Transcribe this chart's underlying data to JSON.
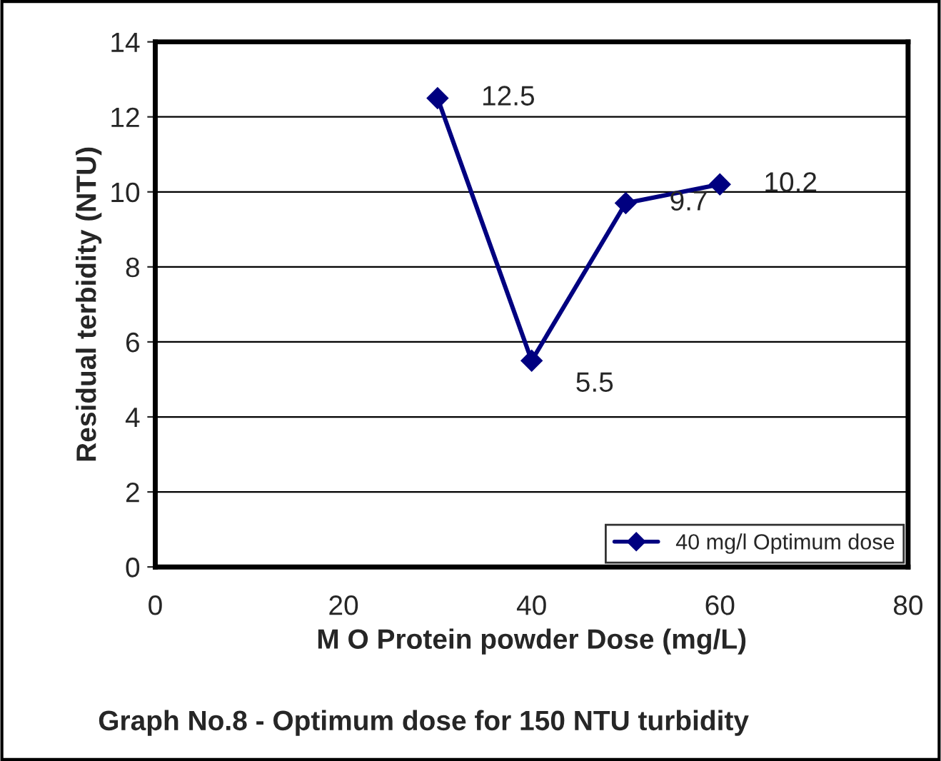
{
  "chart_data": {
    "type": "line",
    "xlabel": "M O Protein powder Dose (mg/L)",
    "ylabel": "Residual terbidity (NTU)",
    "x": [
      30,
      40,
      50,
      60
    ],
    "series": [
      {
        "name": "40 mg/l Optimum dose",
        "color": "#000080",
        "values": [
          12.5,
          5.5,
          9.7,
          10.2
        ]
      }
    ],
    "xlim": [
      0,
      80
    ],
    "xticks": [
      0,
      20,
      40,
      60,
      80
    ],
    "ylim": [
      0,
      14
    ],
    "yticks": [
      0,
      2,
      4,
      6,
      8,
      10,
      12,
      14
    ],
    "grid": "y",
    "legend": "bottom right",
    "marker": "diamond",
    "line_style": "solid",
    "data_labels": true,
    "annotations": [
      "Graph No.8 - Optimum dose for 150 NTU turbidity"
    ]
  }
}
